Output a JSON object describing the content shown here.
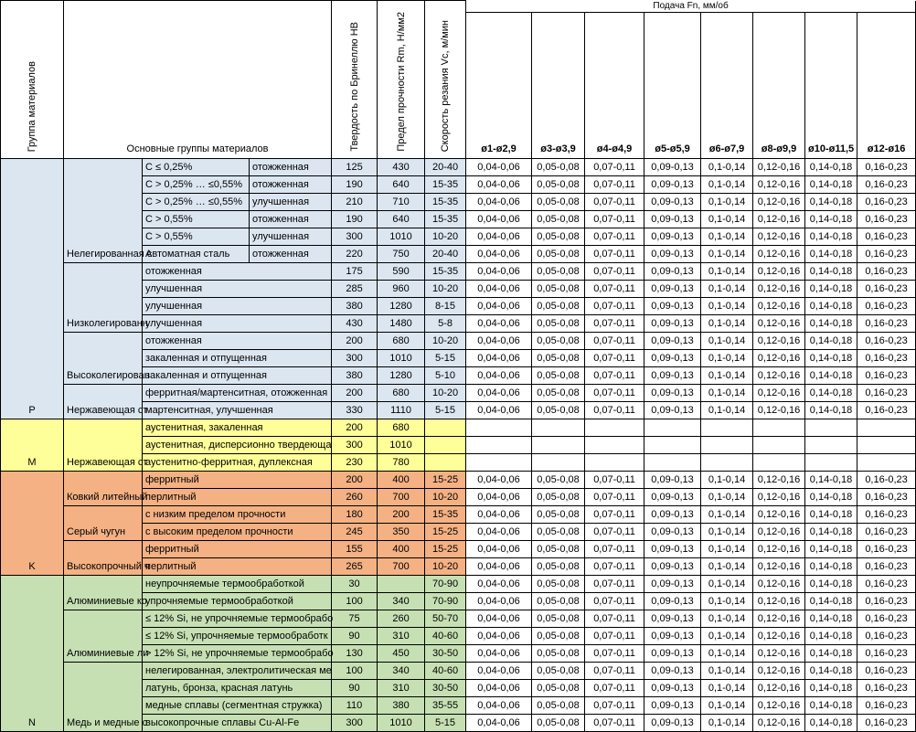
{
  "header": {
    "group_col": "Группа материалов",
    "main_groups": "Основные группы материалов",
    "hardness": "Твердость по Бринеллю HB",
    "strength": "Предел прочности Rm, Н/мм2",
    "speed": "Скорость резания Vc, м/мин",
    "feed_title": "Подача Fn, мм/об",
    "feed_cols": [
      "ø1-ø2,9",
      "ø3-ø3,9",
      "ø4-ø4,9",
      "ø5-ø5,9",
      "ø6-ø7,9",
      "ø8-ø9,9",
      "ø10-ø11,5",
      "ø12-ø16"
    ]
  },
  "feed_values": [
    "0,04-0,06",
    "0,05-0,08",
    "0,07-0,11",
    "0,09-0,13",
    "0,1-0,14",
    "0,12-0,16",
    "0,14-0,18",
    "0,16-0,23"
  ],
  "groups": [
    {
      "letter": "P",
      "color": "#dce6f1",
      "subgroups": [
        {
          "name": "Нелегированная с",
          "rows": [
            {
              "a": "C ≤ 0,25%",
              "b": "отожженная",
              "hb": "125",
              "rm": "430",
              "vc": "20-40",
              "feed": true
            },
            {
              "a": "C > 0,25% … ≤0,55%",
              "b": "отожженная",
              "hb": "190",
              "rm": "640",
              "vc": "15-35",
              "feed": true
            },
            {
              "a": "C > 0,25% … ≤0,55%",
              "b": "улучшенная",
              "hb": "210",
              "rm": "710",
              "vc": "15-35",
              "feed": true
            },
            {
              "a": "C > 0,55%",
              "b": "отожженная",
              "hb": "190",
              "rm": "640",
              "vc": "15-35",
              "feed": true
            },
            {
              "a": "C > 0,55%",
              "b": "улучшенная",
              "hb": "300",
              "rm": "1010",
              "vc": "10-20",
              "feed": true
            },
            {
              "a": "Автоматная сталь",
              "b": "отожженная",
              "hb": "220",
              "rm": "750",
              "vc": "20-40",
              "feed": true
            }
          ]
        },
        {
          "name": "Низколегированн",
          "rows": [
            {
              "a": "отожженная",
              "hb": "175",
              "rm": "590",
              "vc": "15-35",
              "feed": true
            },
            {
              "a": "улучшенная",
              "hb": "285",
              "rm": "960",
              "vc": "10-20",
              "feed": true
            },
            {
              "a": "улучшенная",
              "hb": "380",
              "rm": "1280",
              "vc": "8-15",
              "feed": true
            },
            {
              "a": "улучшенная",
              "hb": "430",
              "rm": "1480",
              "vc": "5-8",
              "feed": true
            }
          ]
        },
        {
          "name": "Высоколегирован",
          "rows": [
            {
              "a": "отожженная",
              "hb": "200",
              "rm": "680",
              "vc": "10-20",
              "feed": true
            },
            {
              "a": "закаленная и отпущенная",
              "hb": "300",
              "rm": "1010",
              "vc": "5-15",
              "feed": true
            },
            {
              "a": "закаленная и отпущенная",
              "hb": "380",
              "rm": "1280",
              "vc": "5-10",
              "feed": true
            }
          ]
        },
        {
          "name": "Нержавеющая ст",
          "rows": [
            {
              "a": "ферритная/мартенситная, отожженная",
              "hb": "200",
              "rm": "680",
              "vc": "10-20",
              "feed": true
            },
            {
              "a": "мартенситная, улучшенная",
              "hb": "330",
              "rm": "1110",
              "vc": "5-15",
              "feed": true
            }
          ]
        }
      ]
    },
    {
      "letter": "M",
      "color": "#ffff99",
      "subgroups": [
        {
          "name": "Нержавеющая ст",
          "rows": [
            {
              "a": "аустенитная, закаленная",
              "hb": "200",
              "rm": "680",
              "vc": "",
              "feed": false
            },
            {
              "a": "аустенитная, дисперсионно твердеюща",
              "hb": "300",
              "rm": "1010",
              "vc": "",
              "feed": false
            },
            {
              "a": "аустенитно-ферритная, дуплексная",
              "hb": "230",
              "rm": "780",
              "vc": "",
              "feed": false
            }
          ]
        }
      ]
    },
    {
      "letter": "K",
      "color": "#f4b183",
      "subgroups": [
        {
          "name": "Ковкий литейный",
          "rows": [
            {
              "a": "ферритный",
              "hb": "200",
              "rm": "400",
              "vc": "15-25",
              "feed": true
            },
            {
              "a": "перлитный",
              "hb": "260",
              "rm": "700",
              "vc": "10-20",
              "feed": true
            }
          ]
        },
        {
          "name": "Серый чугун",
          "rows": [
            {
              "a": "с низким пределом прочности",
              "hb": "180",
              "rm": "200",
              "vc": "15-35",
              "feed": true
            },
            {
              "a": "с высоким пределом прочности",
              "hb": "245",
              "rm": "350",
              "vc": "15-25",
              "feed": true
            }
          ]
        },
        {
          "name": "Высокопрочный ч",
          "rows": [
            {
              "a": "ферритный",
              "hb": "155",
              "rm": "400",
              "vc": "15-25",
              "feed": true
            },
            {
              "a": "перлитный",
              "hb": "265",
              "rm": "700",
              "vc": "10-20",
              "feed": true
            }
          ]
        }
      ]
    },
    {
      "letter": "N",
      "color": "#c6e0b4",
      "subgroups": [
        {
          "name": "Алюминиевые ко",
          "rows": [
            {
              "a": "неупрочняемые термообработкой",
              "hb": "30",
              "rm": "",
              "vc": "70-90",
              "feed": true
            },
            {
              "a": "упрочняемые термообработкой",
              "hb": "100",
              "rm": "340",
              "vc": "70-90",
              "feed": true
            }
          ]
        },
        {
          "name": "Алюминиевые ли",
          "rows": [
            {
              "a": "≤ 12% Si, не упрочняемые термообрабо",
              "hb": "75",
              "rm": "260",
              "vc": "50-70",
              "feed": true
            },
            {
              "a": "≤ 12% Si, упрочняемые термообработк",
              "hb": "90",
              "rm": "310",
              "vc": "40-60",
              "feed": true
            },
            {
              "a": "> 12% Si, не упрочняемые термообрабо",
              "hb": "130",
              "rm": "450",
              "vc": "30-50",
              "feed": true
            }
          ]
        },
        {
          "name": "Медь и медные с",
          "rows": [
            {
              "a": "нелегированная, электролитическая ме",
              "hb": "100",
              "rm": "340",
              "vc": "40-60",
              "feed": true
            },
            {
              "a": "латунь, бронза, красная латунь",
              "hb": "90",
              "rm": "310",
              "vc": "30-50",
              "feed": true
            },
            {
              "a": "медные сплавы (сегментная стружка)",
              "hb": "110",
              "rm": "380",
              "vc": "35-55",
              "feed": true
            },
            {
              "a": "высокопрочные сплавы Cu-Al-Fe",
              "hb": "300",
              "rm": "1010",
              "vc": "5-15",
              "feed": true
            }
          ]
        }
      ]
    }
  ]
}
